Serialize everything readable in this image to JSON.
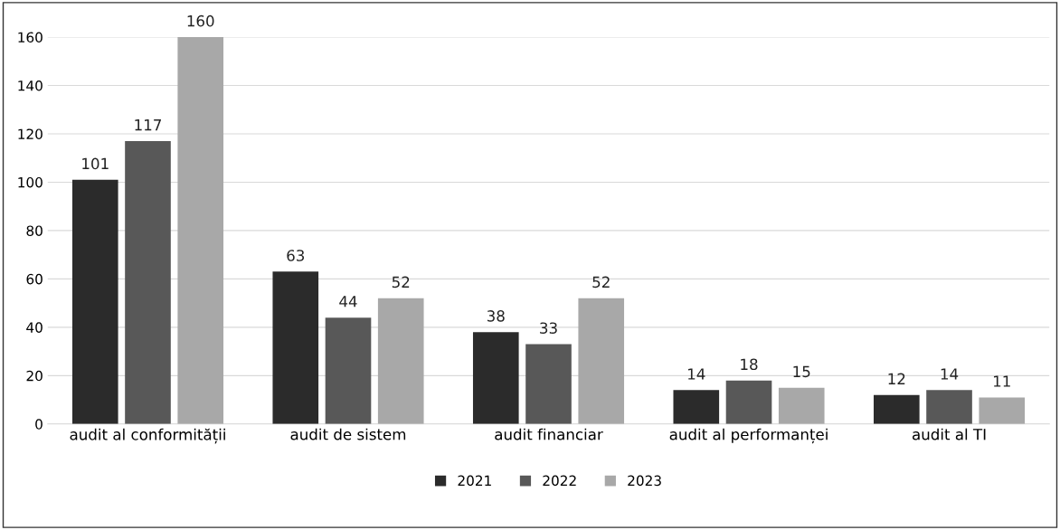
{
  "chart_data": {
    "type": "bar",
    "categories": [
      "audit al conformității",
      "audit de sistem",
      "audit financiar",
      "audit al performanței",
      "audit al TI"
    ],
    "series": [
      {
        "name": "2021",
        "color": "#2b2b2b",
        "values": [
          101,
          63,
          38,
          14,
          12
        ]
      },
      {
        "name": "2022",
        "color": "#585858",
        "values": [
          117,
          44,
          33,
          18,
          14
        ]
      },
      {
        "name": "2023",
        "color": "#a8a8a8",
        "values": [
          160,
          52,
          52,
          15,
          11
        ]
      }
    ],
    "ylim": [
      0,
      160
    ],
    "yticks": [
      0,
      20,
      40,
      60,
      80,
      100,
      120,
      140,
      160
    ],
    "grid": "y",
    "legend": "bottom",
    "data_labels": true
  }
}
